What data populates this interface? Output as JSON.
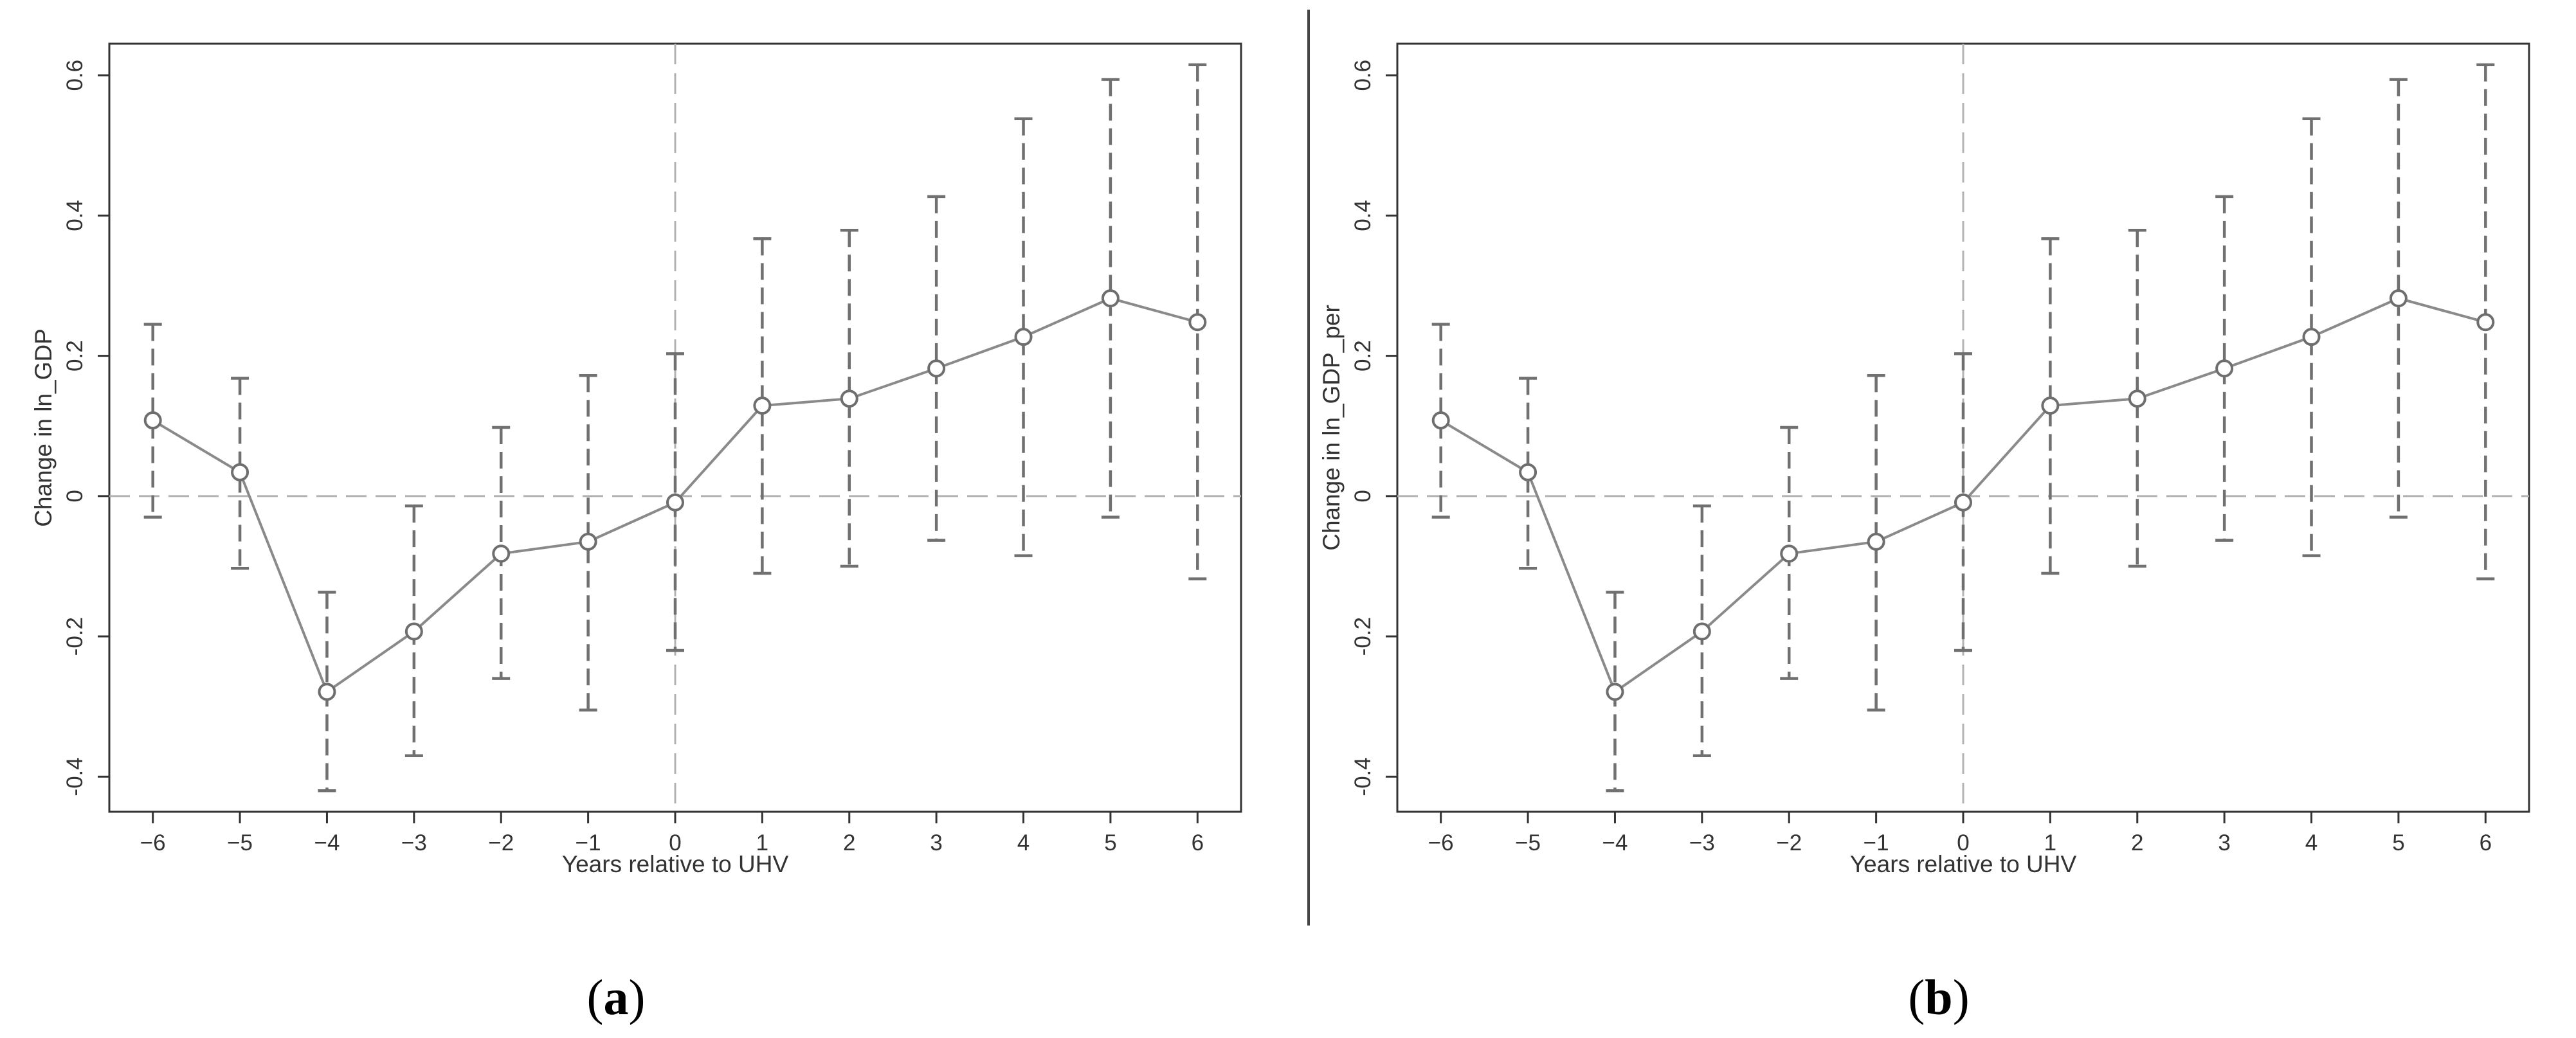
{
  "figure": {
    "panels": [
      {
        "caption": {
          "open": "(",
          "letter": "a",
          "close": ")"
        }
      },
      {
        "caption": {
          "open": "(",
          "letter": "b",
          "close": ")"
        }
      }
    ]
  },
  "chart_data": [
    {
      "type": "line",
      "xlabel": "Years relative to UHV",
      "ylabel": "Change in ln_GDP",
      "x": [
        -6,
        -5,
        -4,
        -3,
        -2,
        -1,
        0,
        1,
        2,
        3,
        4,
        5,
        6
      ],
      "y": [
        0.108,
        0.034,
        -0.279,
        -0.193,
        -0.082,
        -0.065,
        -0.009,
        0.129,
        0.139,
        0.182,
        0.227,
        0.282,
        0.248
      ],
      "ci_low": [
        -0.03,
        -0.103,
        -0.42,
        -0.37,
        -0.26,
        -0.305,
        -0.22,
        -0.11,
        -0.1,
        -0.063,
        -0.085,
        -0.03,
        -0.118
      ],
      "ci_high": [
        0.245,
        0.168,
        -0.137,
        -0.014,
        0.098,
        0.172,
        0.203,
        0.367,
        0.379,
        0.427,
        0.538,
        0.594,
        0.615
      ],
      "xticks": [
        -6,
        -5,
        -4,
        -3,
        -2,
        -1,
        0,
        1,
        2,
        3,
        4,
        5,
        6
      ],
      "yticks": [
        -0.4,
        -0.2,
        0,
        0.2,
        0.4,
        0.6
      ],
      "ytick_labels": [
        "-0.4",
        "-0.2",
        "0",
        "0.2",
        "0.4",
        "0.6"
      ],
      "xlim": [
        -6.5,
        6.5
      ],
      "ylim": [
        -0.45,
        0.645
      ],
      "reference_lines": {
        "x": 0,
        "y": 0
      },
      "grid": false,
      "colors": {
        "line": "#8a8a8a",
        "ci": "#707070",
        "reference": "#b3b3b3",
        "axis": "#333333"
      }
    },
    {
      "type": "line",
      "xlabel": "Years relative to UHV",
      "ylabel": "Change in ln_GDP_per",
      "x": [
        -6,
        -5,
        -4,
        -3,
        -2,
        -1,
        0,
        1,
        2,
        3,
        4,
        5,
        6
      ],
      "y": [
        0.108,
        0.034,
        -0.279,
        -0.193,
        -0.082,
        -0.065,
        -0.009,
        0.129,
        0.139,
        0.182,
        0.227,
        0.282,
        0.248
      ],
      "ci_low": [
        -0.03,
        -0.103,
        -0.42,
        -0.37,
        -0.26,
        -0.305,
        -0.22,
        -0.11,
        -0.1,
        -0.063,
        -0.085,
        -0.03,
        -0.118
      ],
      "ci_high": [
        0.245,
        0.168,
        -0.137,
        -0.014,
        0.098,
        0.172,
        0.203,
        0.367,
        0.379,
        0.427,
        0.538,
        0.594,
        0.615
      ],
      "xticks": [
        -6,
        -5,
        -4,
        -3,
        -2,
        -1,
        0,
        1,
        2,
        3,
        4,
        5,
        6
      ],
      "yticks": [
        -0.4,
        -0.2,
        0,
        0.2,
        0.4,
        0.6
      ],
      "ytick_labels": [
        "-0.4",
        "-0.2",
        "0",
        "0.2",
        "0.4",
        "0.6"
      ],
      "xlim": [
        -6.5,
        6.5
      ],
      "ylim": [
        -0.45,
        0.645
      ],
      "reference_lines": {
        "x": 0,
        "y": 0
      },
      "grid": false,
      "colors": {
        "line": "#8a8a8a",
        "ci": "#707070",
        "reference": "#b3b3b3",
        "axis": "#333333"
      }
    }
  ]
}
